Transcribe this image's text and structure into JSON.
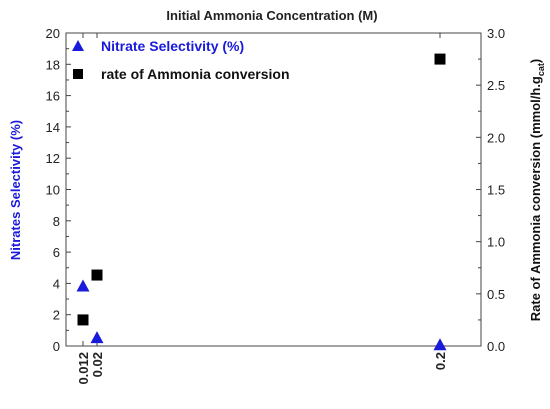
{
  "chart_data": {
    "type": "scatter",
    "title": "Initial Ammonia Concentration (M)",
    "y_left_label": "Nitrates Selectivity (%)",
    "y_right_label": "Rate of Ammonia conversion (mmol/h.g",
    "y_right_label_subscript": "cat",
    "y_right_label_end": ")",
    "x_ticks": [
      "0.012",
      "0.02",
      "0.2"
    ],
    "y_left_range": [
      0,
      20
    ],
    "y_left_ticks": [
      "0",
      "2",
      "4",
      "6",
      "8",
      "10",
      "12",
      "14",
      "16",
      "18",
      "20"
    ],
    "y_right_range": [
      0,
      3.0
    ],
    "y_right_ticks": [
      "0.0",
      "0.5",
      "1.0",
      "1.5",
      "2.0",
      "2.5",
      "3.0"
    ],
    "grid": false,
    "legend_position": "top-left",
    "series": [
      {
        "name": "Nitrate Selectivity (%)",
        "axis": "left",
        "marker": "triangle",
        "color": "#1a1adb",
        "x": [
          0.012,
          0.02,
          0.2
        ],
        "y": [
          3.8,
          0.5,
          0.05
        ]
      },
      {
        "name": "rate of Ammonia conversion",
        "axis": "right",
        "marker": "square",
        "color": "#000000",
        "x": [
          0.012,
          0.02,
          0.2
        ],
        "y": [
          0.25,
          0.68,
          2.75
        ]
      }
    ]
  }
}
